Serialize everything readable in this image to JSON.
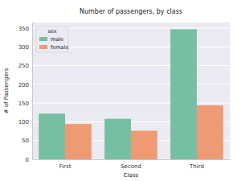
{
  "chart_data": {
    "type": "bar",
    "title": "Number of passengers, by class",
    "x_label": "Class",
    "y_label": "# of Passengers",
    "categories": [
      "First",
      "Second",
      "Third"
    ],
    "legend_title": "sex",
    "series": [
      {
        "name": "male",
        "color": "#76bfa2",
        "values": [
          122,
          108,
          347
        ]
      },
      {
        "name": "female",
        "color": "#ee9a72",
        "values": [
          94,
          76,
          144
        ]
      }
    ],
    "ylim": [
      0,
      365
    ],
    "yticks": [
      0,
      50,
      100,
      150,
      200,
      250,
      300,
      350
    ],
    "grid": true,
    "legend": "upper left"
  }
}
